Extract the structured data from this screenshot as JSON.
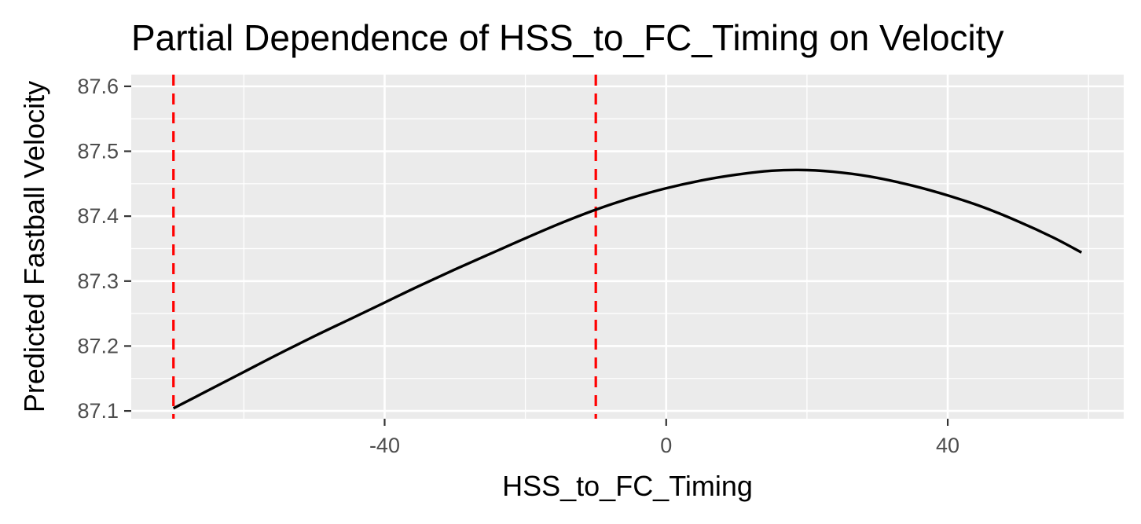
{
  "chart_data": {
    "type": "line",
    "title": "Partial Dependence of HSS_to_FC_Timing on Velocity",
    "xlabel": "HSS_to_FC_Timing",
    "ylabel": "Predicted Fastball Velocity",
    "xlim": [
      -76,
      65
    ],
    "ylim": [
      87.088,
      87.618
    ],
    "x_ticks": [
      -40,
      0,
      40
    ],
    "x_tick_labels": [
      "-40",
      "0",
      "40"
    ],
    "y_ticks": [
      87.1,
      87.2,
      87.3,
      87.4,
      87.5,
      87.6
    ],
    "y_tick_labels": [
      "87.1",
      "87.2",
      "87.3",
      "87.4",
      "87.5",
      "87.6"
    ],
    "grid": true,
    "background": "#ebebeb",
    "series": [
      {
        "color": "#000000",
        "x": [
          -70,
          -65,
          -60,
          -55,
          -50,
          -45,
          -40,
          -35,
          -30,
          -25,
          -20,
          -15,
          -10,
          -5,
          0,
          5,
          10,
          15,
          20,
          25,
          30,
          35,
          40,
          45,
          50,
          55,
          59
        ],
        "y": [
          87.104,
          87.132,
          87.16,
          87.188,
          87.215,
          87.241,
          87.267,
          87.293,
          87.318,
          87.342,
          87.366,
          87.389,
          87.41,
          87.428,
          87.443,
          87.455,
          87.464,
          87.47,
          87.471,
          87.467,
          87.459,
          87.447,
          87.432,
          87.414,
          87.392,
          87.367,
          87.344
        ]
      }
    ],
    "vlines": [
      {
        "x": -70,
        "color": "#ff0000",
        "style": "dashed"
      },
      {
        "x": -10,
        "color": "#ff0000",
        "style": "dashed"
      }
    ]
  }
}
